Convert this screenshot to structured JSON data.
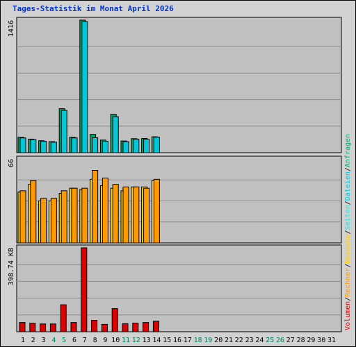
{
  "title": "Tages-Statistik im Monat April 2026",
  "colors": {
    "panel_bg": "#c0c0c0",
    "anfragen": "#00a870",
    "dateien": "#00c8d8",
    "seiten": "#33dddd",
    "besuche": "#ffd200",
    "rechner": "#ff9900",
    "volumen": "#dd0000",
    "weekend_label": "#00805a",
    "normal_label": "#000000"
  },
  "right_legend": {
    "volumen": "Volumen",
    "rechner": "Rechner",
    "besuche": "Besuche",
    "seiten": "Seiten",
    "dateien": "Dateien",
    "anfragen": "Anfragen",
    "sep": "/"
  },
  "chart_data": [
    {
      "type": "bar",
      "panel": "hits",
      "ymax_label": "1416",
      "ylim": [
        0,
        1416
      ],
      "categories": [
        "1",
        "2",
        "3",
        "4",
        "5",
        "6",
        "7",
        "8",
        "9",
        "10",
        "11",
        "12",
        "13",
        "14",
        "15",
        "16",
        "17",
        "18",
        "19",
        "20",
        "21",
        "22",
        "23",
        "24",
        "25",
        "26",
        "27",
        "28",
        "29",
        "30",
        "31"
      ],
      "weekend_days": [
        "4",
        "5",
        "11",
        "12",
        "18",
        "19",
        "25",
        "26"
      ],
      "series": [
        {
          "name": "Anfragen",
          "values": [
            165,
            145,
            128,
            118,
            470,
            165,
            1416,
            195,
            135,
            410,
            125,
            150,
            152,
            170,
            0,
            0,
            0,
            0,
            0,
            0,
            0,
            0,
            0,
            0,
            0,
            0,
            0,
            0,
            0,
            0,
            0
          ]
        },
        {
          "name": "Dateien",
          "values": [
            158,
            140,
            122,
            112,
            452,
            158,
            1400,
            160,
            122,
            385,
            118,
            145,
            145,
            165,
            0,
            0,
            0,
            0,
            0,
            0,
            0,
            0,
            0,
            0,
            0,
            0,
            0,
            0,
            0,
            0,
            0
          ]
        }
      ]
    },
    {
      "type": "bar",
      "panel": "visits",
      "ymax_label": "66",
      "ylim": [
        0,
        66
      ],
      "series": [
        {
          "name": "Besuche",
          "values": [
            40,
            46,
            33,
            33,
            39,
            43,
            42,
            50,
            45,
            43,
            41,
            44,
            44,
            49,
            0,
            0,
            0,
            0,
            0,
            0,
            0,
            0,
            0,
            0,
            0,
            0,
            0,
            0,
            0,
            0,
            0
          ]
        },
        {
          "name": "Rechner",
          "values": [
            41,
            49,
            35,
            35,
            41,
            43,
            43,
            57,
            51,
            46,
            44,
            44,
            43,
            50,
            0,
            0,
            0,
            0,
            0,
            0,
            0,
            0,
            0,
            0,
            0,
            0,
            0,
            0,
            0,
            0,
            0
          ]
        }
      ]
    },
    {
      "type": "bar",
      "panel": "volume",
      "ymax_label": "398.74 KB",
      "ylim": [
        0,
        398.74
      ],
      "series": [
        {
          "name": "Volumen",
          "values": [
            44,
            40,
            37,
            37,
            128,
            44,
            398.74,
            54,
            35,
            110,
            38,
            41,
            44,
            50,
            0,
            0,
            0,
            0,
            0,
            0,
            0,
            0,
            0,
            0,
            0,
            0,
            0,
            0,
            0,
            0,
            0
          ]
        }
      ]
    }
  ]
}
